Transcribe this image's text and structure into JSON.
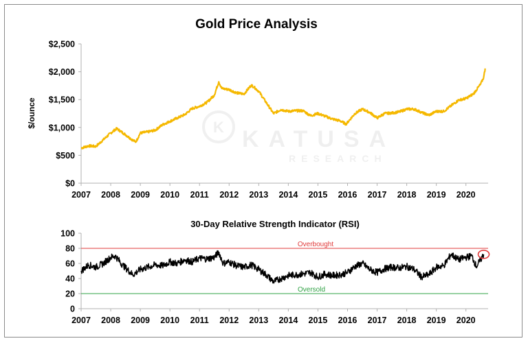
{
  "colors": {
    "gold": "#f5b800",
    "rsi": "#000000",
    "overbought": "#e03a3a",
    "oversold": "#2ea043",
    "axis": "#b0b0b0",
    "highlight": "#e03a3a"
  },
  "watermark": {
    "brand": "KATUSA",
    "sub": "RESEARCH",
    "logo_letter": "K"
  },
  "chart_data": [
    {
      "type": "line",
      "title": "Gold Price Analysis",
      "xlabel": "",
      "ylabel": "$/ounce",
      "xlim": [
        2007,
        2020.75
      ],
      "ylim": [
        0,
        2500
      ],
      "x_ticks": [
        2007,
        2008,
        2009,
        2010,
        2011,
        2012,
        2013,
        2014,
        2015,
        2016,
        2017,
        2018,
        2019,
        2020
      ],
      "x_tick_labels": [
        "2007",
        "2008",
        "2009",
        "2010",
        "2011",
        "2012",
        "2013",
        "2014",
        "2015",
        "2016",
        "2017",
        "2018",
        "2019",
        "2020"
      ],
      "y_ticks": [
        0,
        500,
        1000,
        1500,
        2000,
        2500
      ],
      "y_tick_labels": [
        "$0",
        "$500",
        "$1,000",
        "$1,500",
        "$2,000",
        "$2,500"
      ],
      "grid": false,
      "series": [
        {
          "name": "Gold Price",
          "x": [
            2007.0,
            2007.25,
            2007.5,
            2007.75,
            2008.0,
            2008.2,
            2008.5,
            2008.75,
            2008.85,
            2009.0,
            2009.25,
            2009.5,
            2009.75,
            2010.0,
            2010.25,
            2010.5,
            2010.75,
            2011.0,
            2011.25,
            2011.5,
            2011.65,
            2011.75,
            2012.0,
            2012.25,
            2012.5,
            2012.75,
            2012.85,
            2013.0,
            2013.25,
            2013.5,
            2013.75,
            2014.0,
            2014.25,
            2014.5,
            2014.75,
            2015.0,
            2015.25,
            2015.5,
            2015.75,
            2015.95,
            2016.25,
            2016.5,
            2016.75,
            2017.0,
            2017.25,
            2017.5,
            2017.75,
            2018.0,
            2018.25,
            2018.5,
            2018.75,
            2019.0,
            2019.25,
            2019.5,
            2019.75,
            2020.0,
            2020.25,
            2020.5,
            2020.6,
            2020.65
          ],
          "values": [
            630,
            670,
            660,
            780,
            900,
            980,
            870,
            770,
            740,
            900,
            920,
            950,
            1050,
            1110,
            1170,
            1230,
            1340,
            1380,
            1450,
            1580,
            1820,
            1700,
            1680,
            1620,
            1600,
            1760,
            1720,
            1650,
            1450,
            1250,
            1320,
            1290,
            1300,
            1300,
            1210,
            1250,
            1200,
            1150,
            1120,
            1060,
            1250,
            1330,
            1270,
            1170,
            1250,
            1260,
            1280,
            1330,
            1330,
            1270,
            1220,
            1290,
            1290,
            1390,
            1490,
            1520,
            1600,
            1780,
            1900,
            2060
          ]
        }
      ]
    },
    {
      "type": "line",
      "title": "30-Day Relative Strength Indicator (RSI)",
      "xlabel": "",
      "ylabel": "",
      "xlim": [
        2007,
        2020.75
      ],
      "ylim": [
        0,
        100
      ],
      "x_ticks": [
        2007,
        2008,
        2009,
        2010,
        2011,
        2012,
        2013,
        2014,
        2015,
        2016,
        2017,
        2018,
        2019,
        2020
      ],
      "x_tick_labels": [
        "2007",
        "2008",
        "2009",
        "2010",
        "2011",
        "2012",
        "2013",
        "2014",
        "2015",
        "2016",
        "2017",
        "2018",
        "2019",
        "2020"
      ],
      "y_ticks": [
        0,
        20,
        40,
        60,
        80,
        100
      ],
      "y_tick_labels": [
        "0",
        "20",
        "40",
        "60",
        "80",
        "100"
      ],
      "grid": false,
      "reference_lines": [
        {
          "name": "Overbought",
          "value": 80
        },
        {
          "name": "Oversold",
          "value": 20
        }
      ],
      "annotation": {
        "type": "circle",
        "x": 2020.6,
        "value": 72
      },
      "series": [
        {
          "name": "RSI",
          "x": [
            2007.0,
            2007.25,
            2007.5,
            2007.75,
            2008.0,
            2008.15,
            2008.4,
            2008.75,
            2009.0,
            2009.25,
            2009.5,
            2009.75,
            2010.0,
            2010.25,
            2010.5,
            2010.75,
            2011.0,
            2011.25,
            2011.5,
            2011.65,
            2011.8,
            2012.0,
            2012.25,
            2012.5,
            2012.75,
            2013.0,
            2013.25,
            2013.5,
            2013.75,
            2014.0,
            2014.25,
            2014.5,
            2014.75,
            2015.0,
            2015.25,
            2015.5,
            2015.75,
            2016.0,
            2016.25,
            2016.5,
            2016.75,
            2017.0,
            2017.25,
            2017.5,
            2017.75,
            2018.0,
            2018.25,
            2018.5,
            2018.75,
            2019.0,
            2019.25,
            2019.5,
            2019.75,
            2020.0,
            2020.2,
            2020.35,
            2020.5,
            2020.6
          ],
          "values": [
            50,
            58,
            55,
            60,
            68,
            70,
            58,
            45,
            52,
            55,
            58,
            57,
            62,
            60,
            65,
            62,
            67,
            66,
            68,
            75,
            60,
            62,
            57,
            55,
            58,
            52,
            45,
            36,
            40,
            44,
            45,
            46,
            48,
            42,
            46,
            44,
            45,
            48,
            56,
            60,
            52,
            48,
            53,
            55,
            54,
            56,
            52,
            42,
            45,
            55,
            57,
            72,
            65,
            68,
            70,
            56,
            65,
            72
          ]
        }
      ]
    }
  ]
}
